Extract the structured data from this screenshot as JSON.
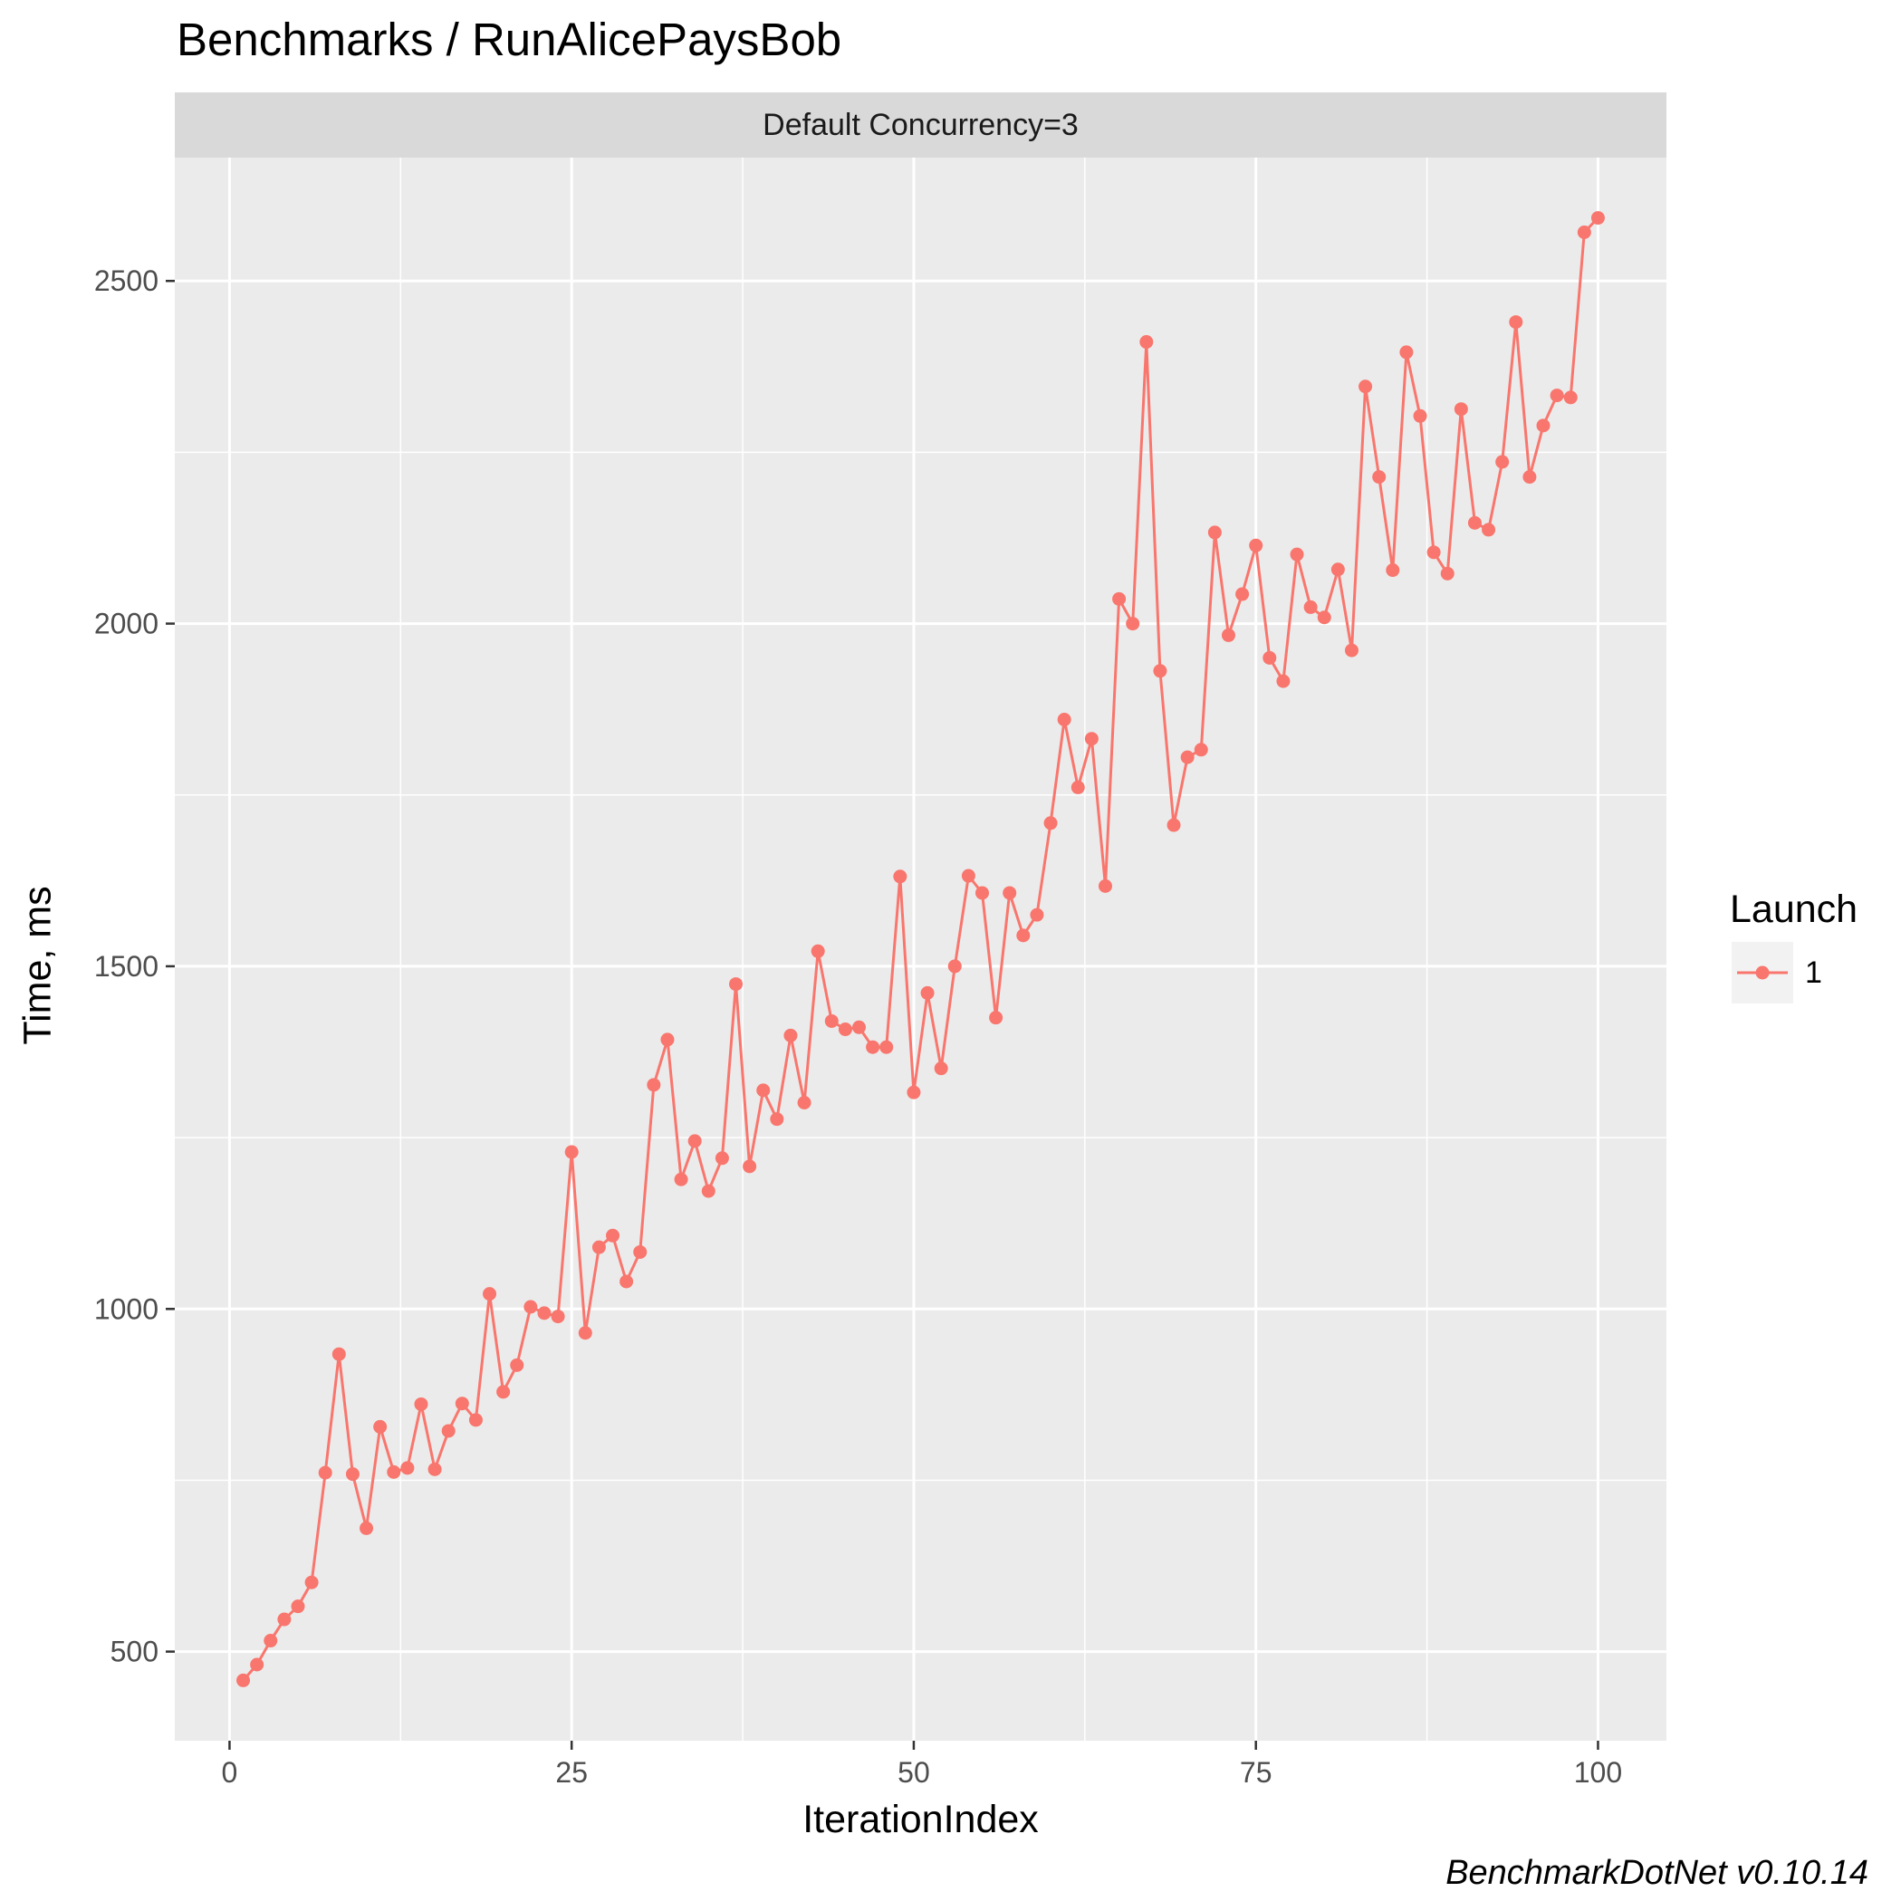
{
  "chart_data": {
    "type": "line",
    "title": "Benchmarks / RunAlicePaysBob",
    "facet_label": "Default Concurrency=3",
    "xlabel": "IterationIndex",
    "ylabel": "Time, ms",
    "caption": "BenchmarkDotNet v0.10.14",
    "xlim": [
      -4,
      105
    ],
    "ylim": [
      370,
      2680
    ],
    "x_ticks": [
      0,
      25,
      50,
      75,
      100
    ],
    "y_ticks": [
      500,
      1000,
      1500,
      2000,
      2500
    ],
    "x_tick_labels": [
      "0",
      "25",
      "50",
      "75",
      "100"
    ],
    "y_tick_labels": [
      "500",
      "1000",
      "1500",
      "2000",
      "2500"
    ],
    "grid": true,
    "legend": {
      "title": "Launch",
      "position": "right",
      "entries": [
        "1"
      ]
    },
    "colors": {
      "series": "#f8766d",
      "panel_bg": "#ebebeb",
      "strip_bg": "#d9d9d9",
      "grid": "#ffffff"
    },
    "series": [
      {
        "name": "1",
        "x": [
          1,
          2,
          3,
          4,
          5,
          6,
          7,
          8,
          9,
          10,
          11,
          12,
          13,
          14,
          15,
          16,
          17,
          18,
          19,
          20,
          21,
          22,
          23,
          24,
          25,
          26,
          27,
          28,
          29,
          30,
          31,
          32,
          33,
          34,
          35,
          36,
          37,
          38,
          39,
          40,
          41,
          42,
          43,
          44,
          45,
          46,
          47,
          48,
          49,
          50,
          51,
          52,
          53,
          54,
          55,
          56,
          57,
          58,
          59,
          60,
          61,
          62,
          63,
          64,
          65,
          66,
          67,
          68,
          69,
          70,
          71,
          72,
          73,
          74,
          75,
          76,
          77,
          78,
          79,
          80,
          81,
          82,
          83,
          84,
          85,
          86,
          87,
          88,
          89,
          90,
          91,
          92,
          93,
          94,
          95,
          96,
          97,
          98,
          99,
          100
        ],
        "y": [
          458,
          481,
          516,
          547,
          566,
          601,
          761,
          934,
          759,
          680,
          828,
          762,
          768,
          861,
          766,
          822,
          862,
          838,
          1022,
          879,
          918,
          1003,
          994,
          989,
          1229,
          965,
          1090,
          1107,
          1040,
          1083,
          1327,
          1393,
          1189,
          1245,
          1172,
          1220,
          1474,
          1208,
          1319,
          1277,
          1399,
          1301,
          1522,
          1420,
          1408,
          1411,
          1382,
          1382,
          1631,
          1316,
          1461,
          1351,
          1500,
          1632,
          1607,
          1425,
          1607,
          1545,
          1575,
          1709,
          1860,
          1761,
          1832,
          1617,
          2036,
          2000,
          2411,
          1931,
          1706,
          1805,
          1816,
          2133,
          1983,
          2043,
          2114,
          1950,
          1916,
          2101,
          2024,
          2009,
          2079,
          1961,
          2346,
          2214,
          2078,
          2396,
          2303,
          2104,
          2073,
          2313,
          2147,
          2137,
          2236,
          2440,
          2214,
          2289,
          2333,
          2330,
          2571,
          2592
        ]
      }
    ]
  }
}
